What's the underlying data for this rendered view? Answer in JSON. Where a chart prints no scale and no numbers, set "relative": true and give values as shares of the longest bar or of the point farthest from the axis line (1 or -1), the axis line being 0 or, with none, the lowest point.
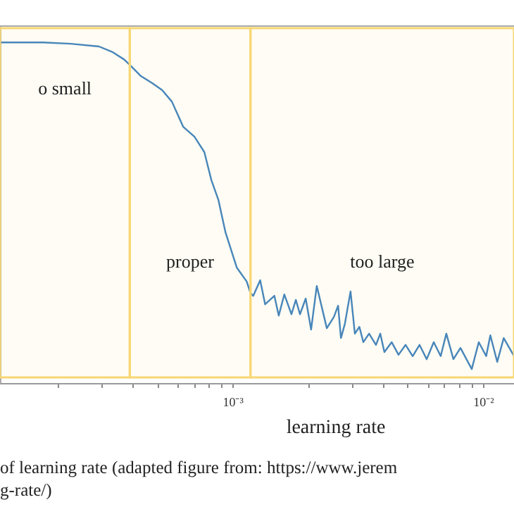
{
  "chart_data": {
    "type": "line",
    "xlabel": "learning rate",
    "log": "x",
    "relative": true,
    "grid": false,
    "marker": "none",
    "line_style": "solid",
    "tick_labels": "x",
    "xlim": [
      0.000118,
      0.0133
    ],
    "xticks": [
      {
        "value": 0.0002,
        "label": null
      },
      {
        "value": 0.0003,
        "label": null
      },
      {
        "value": 0.0004,
        "label": null
      },
      {
        "value": 0.0005,
        "label": null
      },
      {
        "value": 0.0006,
        "label": null
      },
      {
        "value": 0.0007,
        "label": null
      },
      {
        "value": 0.0008,
        "label": null
      },
      {
        "value": 0.0009,
        "label": null
      },
      {
        "value": 0.001,
        "label": "10⁻³"
      },
      {
        "value": 0.002,
        "label": null
      },
      {
        "value": 0.003,
        "label": null
      },
      {
        "value": 0.004,
        "label": null
      },
      {
        "value": 0.005,
        "label": null
      },
      {
        "value": 0.006,
        "label": null
      },
      {
        "value": 0.007,
        "label": null
      },
      {
        "value": 0.008,
        "label": null
      },
      {
        "value": 0.009,
        "label": null
      },
      {
        "value": 0.01,
        "label": "10⁻²"
      }
    ],
    "series": [
      {
        "color": "#3a7fc1",
        "x": [
          0.000118,
          0.000175,
          0.000226,
          0.000293,
          0.000333,
          0.000369,
          0.000389,
          0.000431,
          0.000479,
          0.000524,
          0.000573,
          0.000636,
          0.000705,
          0.000772,
          0.000824,
          0.000879,
          0.000938,
          0.00104,
          0.00114,
          0.00118,
          0.00121,
          0.00129,
          0.00135,
          0.00147,
          0.00153,
          0.00161,
          0.00172,
          0.00179,
          0.00186,
          0.00196,
          0.00206,
          0.00217,
          0.00238,
          0.00254,
          0.00264,
          0.00271,
          0.00281,
          0.00296,
          0.00308,
          0.00321,
          0.00333,
          0.00351,
          0.00374,
          0.00389,
          0.00404,
          0.00432,
          0.0046,
          0.00491,
          0.00524,
          0.00558,
          0.00596,
          0.00636,
          0.00678,
          0.00714,
          0.00762,
          0.00813,
          0.00902,
          0.00962,
          0.0103,
          0.0107,
          0.0114,
          0.0121,
          0.0133
        ],
        "values": [
          1.0,
          1.0,
          0.996,
          0.988,
          0.971,
          0.95,
          0.934,
          0.901,
          0.88,
          0.86,
          0.826,
          0.752,
          0.723,
          0.678,
          0.595,
          0.537,
          0.442,
          0.339,
          0.298,
          0.264,
          0.256,
          0.302,
          0.231,
          0.256,
          0.198,
          0.26,
          0.202,
          0.244,
          0.202,
          0.248,
          0.157,
          0.285,
          0.161,
          0.194,
          0.227,
          0.132,
          0.174,
          0.269,
          0.145,
          0.165,
          0.12,
          0.145,
          0.112,
          0.145,
          0.091,
          0.12,
          0.083,
          0.112,
          0.079,
          0.112,
          0.07,
          0.12,
          0.079,
          0.145,
          0.07,
          0.103,
          0.041,
          0.12,
          0.079,
          0.14,
          0.062,
          0.132,
          0.079
        ]
      }
    ],
    "bands": [
      {
        "axis": "x",
        "from": 0.000118,
        "to": 0.000389,
        "label": "o small",
        "color": "#f7d774"
      },
      {
        "axis": "x",
        "from": 0.000389,
        "to": 0.00118,
        "label": "proper",
        "color": "#f7d774"
      },
      {
        "axis": "x",
        "from": 0.00118,
        "to": 0.0133,
        "label": "too large",
        "color": "#f7d774"
      }
    ],
    "annotations": [
      "of learning rate (adapted figure from: https://www.jerem",
      "g-rate/)"
    ]
  }
}
